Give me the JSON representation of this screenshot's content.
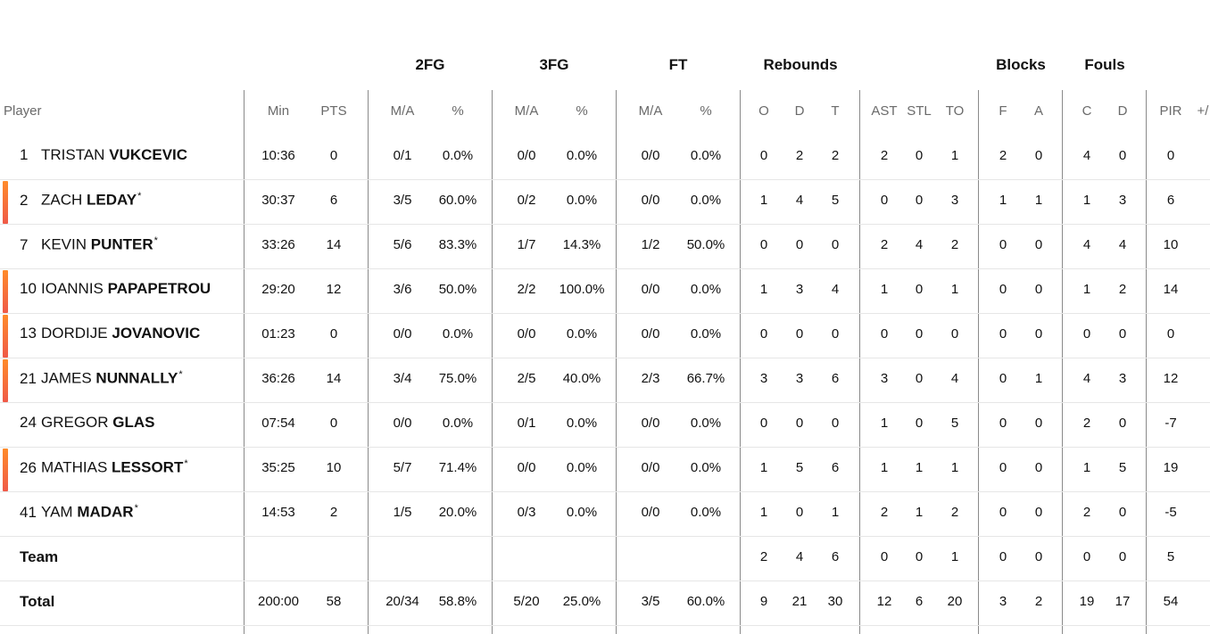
{
  "groups": [
    {
      "label": "2FG",
      "x": 482
    },
    {
      "label": "3FG",
      "x": 621
    },
    {
      "label": "FT",
      "x": 760
    },
    {
      "label": "Rebounds",
      "x": 897
    },
    {
      "label": "Blocks",
      "x": 1144
    },
    {
      "label": "Fouls",
      "x": 1238
    }
  ],
  "columns": [
    {
      "key": "min",
      "label": "Min",
      "x": 312
    },
    {
      "key": "pts",
      "label": "PTS",
      "x": 374
    },
    {
      "key": "fg2_ma",
      "label": "M/A",
      "x": 451
    },
    {
      "key": "fg2_pct",
      "label": "%",
      "x": 513
    },
    {
      "key": "fg3_ma",
      "label": "M/A",
      "x": 590
    },
    {
      "key": "fg3_pct",
      "label": "%",
      "x": 652
    },
    {
      "key": "ft_ma",
      "label": "M/A",
      "x": 729
    },
    {
      "key": "ft_pct",
      "label": "%",
      "x": 791
    },
    {
      "key": "reb_o",
      "label": "O",
      "x": 856
    },
    {
      "key": "reb_d",
      "label": "D",
      "x": 896
    },
    {
      "key": "reb_t",
      "label": "T",
      "x": 936
    },
    {
      "key": "ast",
      "label": "AST",
      "x": 991
    },
    {
      "key": "stl",
      "label": "STL",
      "x": 1030
    },
    {
      "key": "to",
      "label": "TO",
      "x": 1070
    },
    {
      "key": "blk_f",
      "label": "F",
      "x": 1124
    },
    {
      "key": "blk_a",
      "label": "A",
      "x": 1164
    },
    {
      "key": "foul_c",
      "label": "C",
      "x": 1218
    },
    {
      "key": "foul_d",
      "label": "D",
      "x": 1258
    },
    {
      "key": "pir",
      "label": "PIR",
      "x": 1312
    },
    {
      "key": "pm",
      "label": "+/",
      "x": 1348
    }
  ],
  "player_header": "Player",
  "players": [
    {
      "num": "1",
      "first": "TRISTAN",
      "last": "VUKCEVIC",
      "star": "",
      "active": false,
      "stats": [
        "10:36",
        "0",
        "0/1",
        "0.0%",
        "0/0",
        "0.0%",
        "0/0",
        "0.0%",
        "0",
        "2",
        "2",
        "2",
        "0",
        "1",
        "2",
        "0",
        "4",
        "0",
        "0",
        ""
      ]
    },
    {
      "num": "2",
      "first": "ZACH",
      "last": "LEDAY",
      "star": "*",
      "active": true,
      "stats": [
        "30:37",
        "6",
        "3/5",
        "60.0%",
        "0/2",
        "0.0%",
        "0/0",
        "0.0%",
        "1",
        "4",
        "5",
        "0",
        "0",
        "3",
        "1",
        "1",
        "1",
        "3",
        "6",
        ""
      ]
    },
    {
      "num": "7",
      "first": "KEVIN",
      "last": "PUNTER",
      "star": "*",
      "active": false,
      "stats": [
        "33:26",
        "14",
        "5/6",
        "83.3%",
        "1/7",
        "14.3%",
        "1/2",
        "50.0%",
        "0",
        "0",
        "0",
        "2",
        "4",
        "2",
        "0",
        "0",
        "4",
        "4",
        "10",
        ""
      ]
    },
    {
      "num": "10",
      "first": "IOANNIS",
      "last": "PAPAPETROU",
      "star": "",
      "active": true,
      "stats": [
        "29:20",
        "12",
        "3/6",
        "50.0%",
        "2/2",
        "100.0%",
        "0/0",
        "0.0%",
        "1",
        "3",
        "4",
        "1",
        "0",
        "1",
        "0",
        "0",
        "1",
        "2",
        "14",
        ""
      ]
    },
    {
      "num": "13",
      "first": "DORDIJE",
      "last": "JOVANOVIC",
      "star": "",
      "active": true,
      "stats": [
        "01:23",
        "0",
        "0/0",
        "0.0%",
        "0/0",
        "0.0%",
        "0/0",
        "0.0%",
        "0",
        "0",
        "0",
        "0",
        "0",
        "0",
        "0",
        "0",
        "0",
        "0",
        "0",
        ""
      ]
    },
    {
      "num": "21",
      "first": "JAMES",
      "last": "NUNNALLY",
      "star": "*",
      "active": true,
      "stats": [
        "36:26",
        "14",
        "3/4",
        "75.0%",
        "2/5",
        "40.0%",
        "2/3",
        "66.7%",
        "3",
        "3",
        "6",
        "3",
        "0",
        "4",
        "0",
        "1",
        "4",
        "3",
        "12",
        ""
      ]
    },
    {
      "num": "24",
      "first": "GREGOR",
      "last": "GLAS",
      "star": "",
      "active": false,
      "stats": [
        "07:54",
        "0",
        "0/0",
        "0.0%",
        "0/1",
        "0.0%",
        "0/0",
        "0.0%",
        "0",
        "0",
        "0",
        "1",
        "0",
        "5",
        "0",
        "0",
        "2",
        "0",
        "-7",
        ""
      ]
    },
    {
      "num": "26",
      "first": "MATHIAS",
      "last": "LESSORT",
      "star": "*",
      "active": true,
      "stats": [
        "35:25",
        "10",
        "5/7",
        "71.4%",
        "0/0",
        "0.0%",
        "0/0",
        "0.0%",
        "1",
        "5",
        "6",
        "1",
        "1",
        "1",
        "0",
        "0",
        "1",
        "5",
        "19",
        ""
      ]
    },
    {
      "num": "41",
      "first": "YAM",
      "last": "MADAR",
      "star": "*",
      "active": false,
      "stats": [
        "14:53",
        "2",
        "1/5",
        "20.0%",
        "0/3",
        "0.0%",
        "0/0",
        "0.0%",
        "1",
        "0",
        "1",
        "2",
        "1",
        "2",
        "0",
        "0",
        "2",
        "0",
        "-5",
        ""
      ]
    }
  ],
  "team": {
    "label": "Team",
    "stats": [
      "",
      "",
      "",
      "",
      "",
      "",
      "",
      "",
      "2",
      "4",
      "6",
      "0",
      "0",
      "1",
      "0",
      "0",
      "0",
      "0",
      "5",
      ""
    ]
  },
  "total": {
    "label": "Total",
    "stats": [
      "200:00",
      "58",
      "20/34",
      "58.8%",
      "5/20",
      "25.0%",
      "3/5",
      "60.0%",
      "9",
      "21",
      "30",
      "12",
      "6",
      "20",
      "3",
      "2",
      "19",
      "17",
      "54",
      ""
    ]
  },
  "colors": {
    "active_bar_top": "#ff8b2a",
    "active_bar_bottom": "#ef5a48",
    "divider": "#8a8a8a",
    "row_line": "#e6e6e6"
  }
}
